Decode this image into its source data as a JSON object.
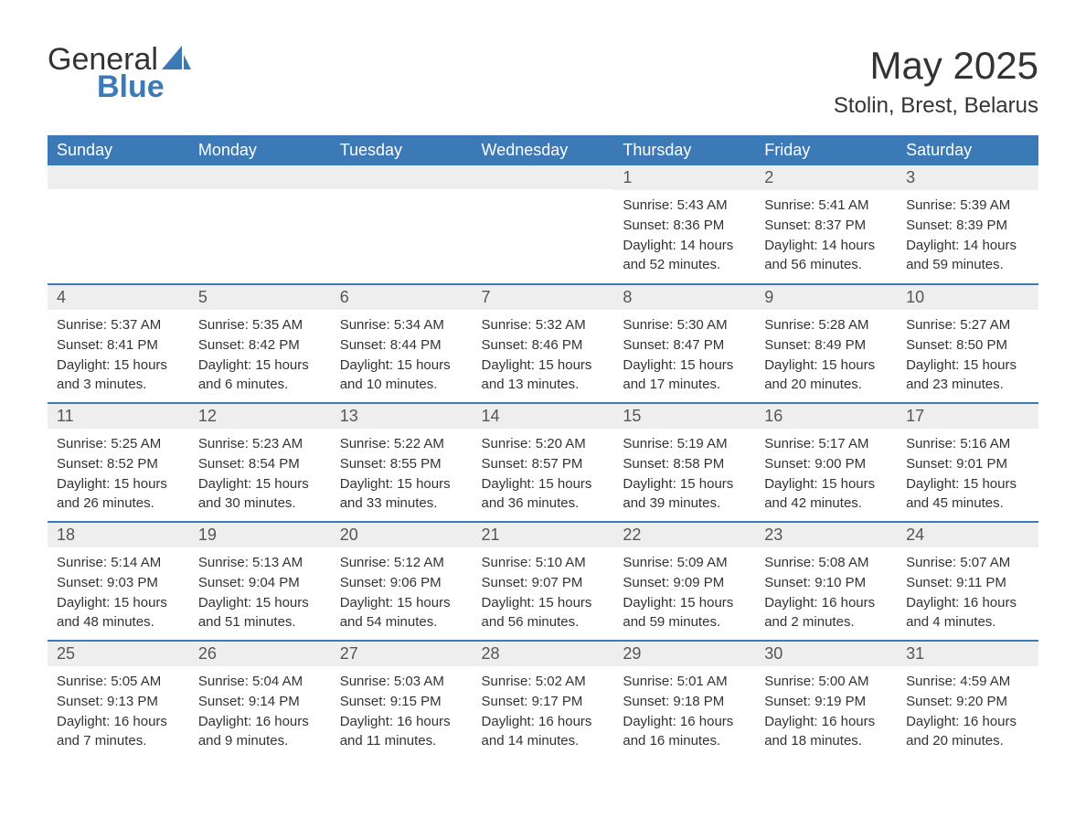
{
  "logo": {
    "text1": "General",
    "text2": "Blue"
  },
  "title": "May 2025",
  "location": "Stolin, Brest, Belarus",
  "colors": {
    "header_bg": "#3b79b7",
    "header_text": "#ffffff",
    "daynum_bg": "#eeeeee",
    "daynum_text": "#555555",
    "body_text": "#333333",
    "row_divider": "#3b79b7",
    "page_bg": "#ffffff",
    "logo_accent": "#3b79b7"
  },
  "day_headers": [
    "Sunday",
    "Monday",
    "Tuesday",
    "Wednesday",
    "Thursday",
    "Friday",
    "Saturday"
  ],
  "weeks": [
    [
      {
        "day": "",
        "sunrise": "",
        "sunset": "",
        "daylight1": "",
        "daylight2": ""
      },
      {
        "day": "",
        "sunrise": "",
        "sunset": "",
        "daylight1": "",
        "daylight2": ""
      },
      {
        "day": "",
        "sunrise": "",
        "sunset": "",
        "daylight1": "",
        "daylight2": ""
      },
      {
        "day": "",
        "sunrise": "",
        "sunset": "",
        "daylight1": "",
        "daylight2": ""
      },
      {
        "day": "1",
        "sunrise": "Sunrise: 5:43 AM",
        "sunset": "Sunset: 8:36 PM",
        "daylight1": "Daylight: 14 hours",
        "daylight2": "and 52 minutes."
      },
      {
        "day": "2",
        "sunrise": "Sunrise: 5:41 AM",
        "sunset": "Sunset: 8:37 PM",
        "daylight1": "Daylight: 14 hours",
        "daylight2": "and 56 minutes."
      },
      {
        "day": "3",
        "sunrise": "Sunrise: 5:39 AM",
        "sunset": "Sunset: 8:39 PM",
        "daylight1": "Daylight: 14 hours",
        "daylight2": "and 59 minutes."
      }
    ],
    [
      {
        "day": "4",
        "sunrise": "Sunrise: 5:37 AM",
        "sunset": "Sunset: 8:41 PM",
        "daylight1": "Daylight: 15 hours",
        "daylight2": "and 3 minutes."
      },
      {
        "day": "5",
        "sunrise": "Sunrise: 5:35 AM",
        "sunset": "Sunset: 8:42 PM",
        "daylight1": "Daylight: 15 hours",
        "daylight2": "and 6 minutes."
      },
      {
        "day": "6",
        "sunrise": "Sunrise: 5:34 AM",
        "sunset": "Sunset: 8:44 PM",
        "daylight1": "Daylight: 15 hours",
        "daylight2": "and 10 minutes."
      },
      {
        "day": "7",
        "sunrise": "Sunrise: 5:32 AM",
        "sunset": "Sunset: 8:46 PM",
        "daylight1": "Daylight: 15 hours",
        "daylight2": "and 13 minutes."
      },
      {
        "day": "8",
        "sunrise": "Sunrise: 5:30 AM",
        "sunset": "Sunset: 8:47 PM",
        "daylight1": "Daylight: 15 hours",
        "daylight2": "and 17 minutes."
      },
      {
        "day": "9",
        "sunrise": "Sunrise: 5:28 AM",
        "sunset": "Sunset: 8:49 PM",
        "daylight1": "Daylight: 15 hours",
        "daylight2": "and 20 minutes."
      },
      {
        "day": "10",
        "sunrise": "Sunrise: 5:27 AM",
        "sunset": "Sunset: 8:50 PM",
        "daylight1": "Daylight: 15 hours",
        "daylight2": "and 23 minutes."
      }
    ],
    [
      {
        "day": "11",
        "sunrise": "Sunrise: 5:25 AM",
        "sunset": "Sunset: 8:52 PM",
        "daylight1": "Daylight: 15 hours",
        "daylight2": "and 26 minutes."
      },
      {
        "day": "12",
        "sunrise": "Sunrise: 5:23 AM",
        "sunset": "Sunset: 8:54 PM",
        "daylight1": "Daylight: 15 hours",
        "daylight2": "and 30 minutes."
      },
      {
        "day": "13",
        "sunrise": "Sunrise: 5:22 AM",
        "sunset": "Sunset: 8:55 PM",
        "daylight1": "Daylight: 15 hours",
        "daylight2": "and 33 minutes."
      },
      {
        "day": "14",
        "sunrise": "Sunrise: 5:20 AM",
        "sunset": "Sunset: 8:57 PM",
        "daylight1": "Daylight: 15 hours",
        "daylight2": "and 36 minutes."
      },
      {
        "day": "15",
        "sunrise": "Sunrise: 5:19 AM",
        "sunset": "Sunset: 8:58 PM",
        "daylight1": "Daylight: 15 hours",
        "daylight2": "and 39 minutes."
      },
      {
        "day": "16",
        "sunrise": "Sunrise: 5:17 AM",
        "sunset": "Sunset: 9:00 PM",
        "daylight1": "Daylight: 15 hours",
        "daylight2": "and 42 minutes."
      },
      {
        "day": "17",
        "sunrise": "Sunrise: 5:16 AM",
        "sunset": "Sunset: 9:01 PM",
        "daylight1": "Daylight: 15 hours",
        "daylight2": "and 45 minutes."
      }
    ],
    [
      {
        "day": "18",
        "sunrise": "Sunrise: 5:14 AM",
        "sunset": "Sunset: 9:03 PM",
        "daylight1": "Daylight: 15 hours",
        "daylight2": "and 48 minutes."
      },
      {
        "day": "19",
        "sunrise": "Sunrise: 5:13 AM",
        "sunset": "Sunset: 9:04 PM",
        "daylight1": "Daylight: 15 hours",
        "daylight2": "and 51 minutes."
      },
      {
        "day": "20",
        "sunrise": "Sunrise: 5:12 AM",
        "sunset": "Sunset: 9:06 PM",
        "daylight1": "Daylight: 15 hours",
        "daylight2": "and 54 minutes."
      },
      {
        "day": "21",
        "sunrise": "Sunrise: 5:10 AM",
        "sunset": "Sunset: 9:07 PM",
        "daylight1": "Daylight: 15 hours",
        "daylight2": "and 56 minutes."
      },
      {
        "day": "22",
        "sunrise": "Sunrise: 5:09 AM",
        "sunset": "Sunset: 9:09 PM",
        "daylight1": "Daylight: 15 hours",
        "daylight2": "and 59 minutes."
      },
      {
        "day": "23",
        "sunrise": "Sunrise: 5:08 AM",
        "sunset": "Sunset: 9:10 PM",
        "daylight1": "Daylight: 16 hours",
        "daylight2": "and 2 minutes."
      },
      {
        "day": "24",
        "sunrise": "Sunrise: 5:07 AM",
        "sunset": "Sunset: 9:11 PM",
        "daylight1": "Daylight: 16 hours",
        "daylight2": "and 4 minutes."
      }
    ],
    [
      {
        "day": "25",
        "sunrise": "Sunrise: 5:05 AM",
        "sunset": "Sunset: 9:13 PM",
        "daylight1": "Daylight: 16 hours",
        "daylight2": "and 7 minutes."
      },
      {
        "day": "26",
        "sunrise": "Sunrise: 5:04 AM",
        "sunset": "Sunset: 9:14 PM",
        "daylight1": "Daylight: 16 hours",
        "daylight2": "and 9 minutes."
      },
      {
        "day": "27",
        "sunrise": "Sunrise: 5:03 AM",
        "sunset": "Sunset: 9:15 PM",
        "daylight1": "Daylight: 16 hours",
        "daylight2": "and 11 minutes."
      },
      {
        "day": "28",
        "sunrise": "Sunrise: 5:02 AM",
        "sunset": "Sunset: 9:17 PM",
        "daylight1": "Daylight: 16 hours",
        "daylight2": "and 14 minutes."
      },
      {
        "day": "29",
        "sunrise": "Sunrise: 5:01 AM",
        "sunset": "Sunset: 9:18 PM",
        "daylight1": "Daylight: 16 hours",
        "daylight2": "and 16 minutes."
      },
      {
        "day": "30",
        "sunrise": "Sunrise: 5:00 AM",
        "sunset": "Sunset: 9:19 PM",
        "daylight1": "Daylight: 16 hours",
        "daylight2": "and 18 minutes."
      },
      {
        "day": "31",
        "sunrise": "Sunrise: 4:59 AM",
        "sunset": "Sunset: 9:20 PM",
        "daylight1": "Daylight: 16 hours",
        "daylight2": "and 20 minutes."
      }
    ]
  ]
}
